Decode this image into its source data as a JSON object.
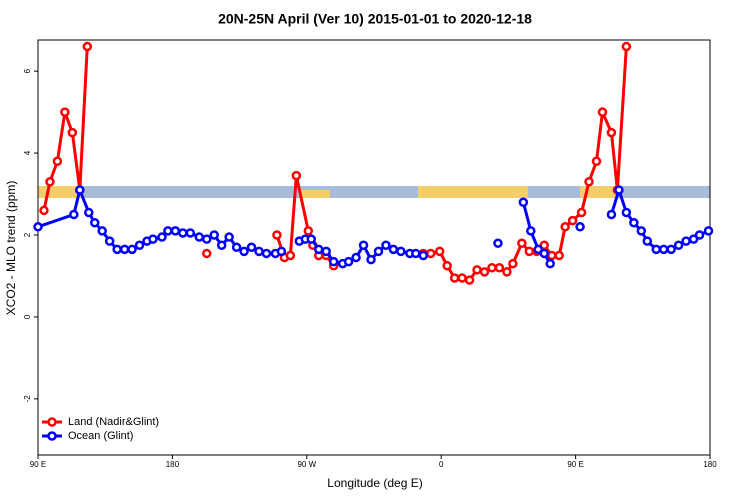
{
  "chart_data": {
    "type": "line",
    "title": "20N-25N April (Ver 10)   2015-01-01 to 2020-12-18",
    "x_label": "Longitude (deg E)",
    "y_label": "XCO2 - MLO trend (ppm)",
    "xlim": [
      90,
      540
    ],
    "xticks": [
      {
        "value": 90,
        "label": "90 E"
      },
      180,
      {
        "value": 270,
        "label": "90 W"
      },
      {
        "value": 360,
        "label": "0"
      },
      {
        "value": 450,
        "label": "90 E"
      },
      {
        "value": 540,
        "label": "180"
      }
    ],
    "ylim": [
      -3.37,
      6.76
    ],
    "yticks": [
      -2,
      0,
      2,
      4,
      6
    ],
    "legend": "bottom-left",
    "series": [
      {
        "name": "Land (Nadir&Glint)",
        "color": "#ff0000",
        "x": [
          94,
          98,
          103,
          108,
          113,
          118,
          123,
          null,
          203,
          null,
          250,
          255,
          259,
          263,
          271,
          274,
          278,
          283,
          288,
          null,
          348,
          353,
          359,
          364,
          369,
          374,
          379,
          384,
          389,
          394,
          399,
          404,
          408,
          414,
          419,
          424,
          429,
          434,
          439,
          443,
          448,
          454,
          459,
          464,
          468,
          474,
          478,
          484
        ],
        "values": [
          2.6,
          3.3,
          3.8,
          5.0,
          4.5,
          3.1,
          6.6,
          null,
          1.55,
          null,
          2.0,
          1.45,
          1.5,
          3.45,
          2.1,
          1.75,
          1.5,
          1.5,
          1.25,
          null,
          1.55,
          1.55,
          1.6,
          1.25,
          0.95,
          0.95,
          0.9,
          1.15,
          1.1,
          1.2,
          1.2,
          1.1,
          1.3,
          1.8,
          1.6,
          1.6,
          1.75,
          1.5,
          1.5,
          2.2,
          2.35,
          2.55,
          3.3,
          3.8,
          5.0,
          4.5,
          3.1,
          6.6
        ]
      },
      {
        "name": "Ocean (Glint)",
        "color": "#0000ff",
        "x": [
          90,
          114,
          118,
          124,
          128,
          133,
          138,
          143,
          148,
          153,
          158,
          163,
          167,
          173,
          177,
          182,
          187,
          192,
          198,
          203,
          208,
          213,
          218,
          223,
          228,
          233,
          238,
          243,
          249,
          253,
          null,
          265,
          269,
          273,
          278,
          283,
          288,
          294,
          298,
          303,
          308,
          313,
          318,
          323,
          328,
          333,
          339,
          343,
          348,
          null,
          398,
          null,
          415,
          420,
          425,
          429,
          433,
          null,
          453,
          null,
          474,
          479,
          484,
          489,
          494,
          498,
          504,
          509,
          514,
          519,
          524,
          529,
          533,
          539
        ],
        "values": [
          2.2,
          2.5,
          3.1,
          2.55,
          2.3,
          2.1,
          1.85,
          1.65,
          1.65,
          1.65,
          1.75,
          1.85,
          1.9,
          1.95,
          2.1,
          2.1,
          2.05,
          2.05,
          1.95,
          1.9,
          2.0,
          1.75,
          1.95,
          1.7,
          1.6,
          1.7,
          1.6,
          1.55,
          1.55,
          1.6,
          null,
          1.85,
          1.9,
          1.9,
          1.65,
          1.6,
          1.35,
          1.3,
          1.35,
          1.45,
          1.75,
          1.4,
          1.6,
          1.75,
          1.65,
          1.6,
          1.55,
          1.55,
          1.5,
          null,
          1.8,
          null,
          2.8,
          2.1,
          1.65,
          1.55,
          1.3,
          null,
          2.2,
          null,
          2.5,
          3.1,
          2.55,
          2.3,
          2.1,
          1.85,
          1.65,
          1.65,
          1.65,
          1.75,
          1.85,
          1.9,
          2.0,
          2.1
        ]
      }
    ]
  }
}
